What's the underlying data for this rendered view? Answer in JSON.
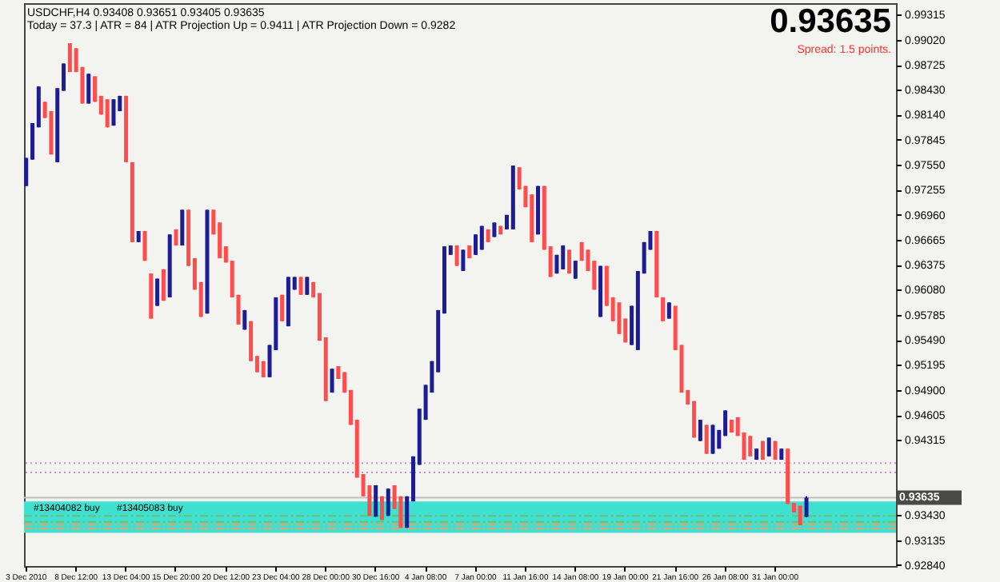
{
  "chart_data": {
    "type": "candlestick",
    "title": "USDCHF,H4  0.93408 0.93651 0.93405 0.93635",
    "subtitle": "Today = 37.3  |  ATR = 84  |  ATR Projection Up = 0.9411  |  ATR Projection Down = 0.9282",
    "categories": [
      "3 Dec 2010",
      null,
      null,
      null,
      null,
      null,
      null,
      null,
      "8 Dec 12:00",
      null,
      null,
      null,
      null,
      null,
      null,
      null,
      "13 Dec 04:00",
      null,
      null,
      null,
      null,
      null,
      null,
      null,
      "15 Dec 20:00",
      null,
      null,
      null,
      null,
      null,
      null,
      null,
      "20 Dec 12:00",
      null,
      null,
      null,
      null,
      null,
      null,
      null,
      "23 Dec 04:00",
      null,
      null,
      null,
      null,
      null,
      null,
      null,
      "28 Dec 00:00",
      null,
      null,
      null,
      null,
      null,
      null,
      null,
      "30 Dec 16:00",
      null,
      null,
      null,
      null,
      null,
      null,
      null,
      "4 Jan 08:00",
      null,
      null,
      null,
      null,
      null,
      null,
      null,
      "7 Jan 00:00",
      null,
      null,
      null,
      null,
      null,
      null,
      null,
      "11 Jan 16:00",
      null,
      null,
      null,
      null,
      null,
      null,
      null,
      "14 Jan 08:00",
      null,
      null,
      null,
      null,
      null,
      null,
      null,
      "19 Jan 00:00",
      null,
      null,
      null,
      null,
      null,
      null,
      null,
      "21 Jan 16:00",
      null,
      null,
      null,
      null,
      null,
      null,
      null,
      "26 Jan 08:00",
      null,
      null,
      null,
      null,
      null,
      null,
      null,
      "31 Jan 00:00",
      null,
      null,
      null,
      null,
      null,
      null,
      null,
      null,
      null,
      null,
      null,
      null,
      null,
      null,
      null,
      null,
      null,
      null,
      null
    ],
    "ohlc": [
      [
        0.973,
        0.9763,
        0.973,
        0.9763
      ],
      [
        0.9761,
        0.9804,
        0.9761,
        0.9804
      ],
      [
        0.9799,
        0.9847,
        0.9799,
        0.9847
      ],
      [
        0.9829,
        0.9829,
        0.981,
        0.981
      ],
      [
        0.9818,
        0.9818,
        0.9767,
        0.9767
      ],
      [
        0.9758,
        0.9845,
        0.9758,
        0.9845
      ],
      [
        0.9842,
        0.9874,
        0.9842,
        0.9874
      ],
      [
        0.9898,
        0.9898,
        0.9864,
        0.9864
      ],
      [
        0.9892,
        0.9892,
        0.9864,
        0.9864
      ],
      [
        0.987,
        0.987,
        0.9827,
        0.9827
      ],
      [
        0.9827,
        0.9862,
        0.9827,
        0.9862
      ],
      [
        0.9859,
        0.9859,
        0.9829,
        0.9829
      ],
      [
        0.9836,
        0.9836,
        0.9814,
        0.9814
      ],
      [
        0.9832,
        0.9832,
        0.9799,
        0.9799
      ],
      [
        0.9801,
        0.9832,
        0.9801,
        0.9832
      ],
      [
        0.9818,
        0.9836,
        0.9818,
        0.9836
      ],
      [
        0.9836,
        0.9836,
        0.9758,
        0.9758
      ],
      [
        0.9758,
        0.9758,
        0.9664,
        0.9664
      ],
      [
        0.9664,
        0.9677,
        0.9664,
        0.9677
      ],
      [
        0.9677,
        0.9677,
        0.9642,
        0.9642
      ],
      [
        0.9627,
        0.9627,
        0.9574,
        0.9574
      ],
      [
        0.9589,
        0.9621,
        0.9589,
        0.9621
      ],
      [
        0.9632,
        0.9632,
        0.9595,
        0.9595
      ],
      [
        0.9599,
        0.9673,
        0.9599,
        0.9673
      ],
      [
        0.9679,
        0.9679,
        0.966,
        0.966
      ],
      [
        0.966,
        0.9702,
        0.966,
        0.9702
      ],
      [
        0.9702,
        0.9702,
        0.9636,
        0.9636
      ],
      [
        0.9645,
        0.9645,
        0.9608,
        0.9608
      ],
      [
        0.9617,
        0.9617,
        0.9576,
        0.9576
      ],
      [
        0.958,
        0.9702,
        0.958,
        0.9702
      ],
      [
        0.9702,
        0.9702,
        0.9673,
        0.9673
      ],
      [
        0.9687,
        0.9687,
        0.9645,
        0.9645
      ],
      [
        0.9659,
        0.9659,
        0.964,
        0.964
      ],
      [
        0.9642,
        0.9642,
        0.9599,
        0.9599
      ],
      [
        0.9602,
        0.9602,
        0.9567,
        0.9567
      ],
      [
        0.9561,
        0.9584,
        0.9561,
        0.9584
      ],
      [
        0.9571,
        0.9571,
        0.9524,
        0.9524
      ],
      [
        0.953,
        0.953,
        0.9511,
        0.9511
      ],
      [
        0.9524,
        0.9524,
        0.9505,
        0.9505
      ],
      [
        0.9505,
        0.9543,
        0.9505,
        0.9543
      ],
      [
        0.9537,
        0.9599,
        0.9537,
        0.9599
      ],
      [
        0.9602,
        0.9602,
        0.9571,
        0.9571
      ],
      [
        0.9565,
        0.9623,
        0.9565,
        0.9623
      ],
      [
        0.9608,
        0.9623,
        0.9608,
        0.9623
      ],
      [
        0.9623,
        0.9623,
        0.9602,
        0.9602
      ],
      [
        0.9602,
        0.9623,
        0.9602,
        0.9623
      ],
      [
        0.9617,
        0.9617,
        0.9599,
        0.9599
      ],
      [
        0.9604,
        0.9604,
        0.9548,
        0.9548
      ],
      [
        0.9552,
        0.9552,
        0.9477,
        0.9477
      ],
      [
        0.9487,
        0.9515,
        0.9487,
        0.9515
      ],
      [
        0.9518,
        0.9518,
        0.9503,
        0.9503
      ],
      [
        0.9511,
        0.9511,
        0.9487,
        0.9487
      ],
      [
        0.949,
        0.949,
        0.9449,
        0.9449
      ],
      [
        0.9455,
        0.9455,
        0.9387,
        0.9387
      ],
      [
        0.9391,
        0.9391,
        0.9365,
        0.9365
      ],
      [
        0.9378,
        0.9378,
        0.9342,
        0.9342
      ],
      [
        0.9341,
        0.9378,
        0.9341,
        0.9378
      ],
      [
        0.9365,
        0.9365,
        0.9337,
        0.9337
      ],
      [
        0.9342,
        0.9374,
        0.9342,
        0.9374
      ],
      [
        0.9378,
        0.9378,
        0.935,
        0.935
      ],
      [
        0.9365,
        0.9365,
        0.9328,
        0.9328
      ],
      [
        0.9328,
        0.9365,
        0.9328,
        0.9365
      ],
      [
        0.9359,
        0.9412,
        0.9359,
        0.9412
      ],
      [
        0.9402,
        0.9468,
        0.9402,
        0.9468
      ],
      [
        0.9455,
        0.9496,
        0.9455,
        0.9496
      ],
      [
        0.9487,
        0.9524,
        0.9487,
        0.9524
      ],
      [
        0.9511,
        0.9584,
        0.9511,
        0.9584
      ],
      [
        0.958,
        0.9659,
        0.958,
        0.9659
      ],
      [
        0.9649,
        0.966,
        0.9649,
        0.966
      ],
      [
        0.966,
        0.966,
        0.9636,
        0.9636
      ],
      [
        0.963,
        0.9655,
        0.963,
        0.9655
      ],
      [
        0.966,
        0.966,
        0.9645,
        0.9645
      ],
      [
        0.9649,
        0.9673,
        0.9649,
        0.9673
      ],
      [
        0.9655,
        0.9683,
        0.9655,
        0.9683
      ],
      [
        0.9679,
        0.9679,
        0.9664,
        0.9664
      ],
      [
        0.967,
        0.9687,
        0.967,
        0.9687
      ],
      [
        0.9683,
        0.9683,
        0.9673,
        0.9673
      ],
      [
        0.9679,
        0.9696,
        0.9679,
        0.9696
      ],
      [
        0.9679,
        0.9754,
        0.9679,
        0.9754
      ],
      [
        0.9752,
        0.9752,
        0.9726,
        0.9726
      ],
      [
        0.973,
        0.973,
        0.9705,
        0.9705
      ],
      [
        0.972,
        0.972,
        0.9664,
        0.9664
      ],
      [
        0.9673,
        0.973,
        0.9673,
        0.973
      ],
      [
        0.973,
        0.973,
        0.9655,
        0.9655
      ],
      [
        0.9659,
        0.9659,
        0.9623,
        0.9623
      ],
      [
        0.9627,
        0.9649,
        0.9627,
        0.9649
      ],
      [
        0.9632,
        0.966,
        0.9632,
        0.966
      ],
      [
        0.9655,
        0.9655,
        0.9627,
        0.9627
      ],
      [
        0.9621,
        0.9642,
        0.9621,
        0.9642
      ],
      [
        0.9664,
        0.9664,
        0.9642,
        0.9642
      ],
      [
        0.9655,
        0.9655,
        0.963,
        0.963
      ],
      [
        0.9642,
        0.9642,
        0.9608,
        0.9608
      ],
      [
        0.9576,
        0.9636,
        0.9576,
        0.9636
      ],
      [
        0.9636,
        0.9636,
        0.9589,
        0.9589
      ],
      [
        0.9599,
        0.9599,
        0.9571,
        0.9571
      ],
      [
        0.9593,
        0.9593,
        0.9556,
        0.9556
      ],
      [
        0.9574,
        0.9574,
        0.9546,
        0.9546
      ],
      [
        0.9543,
        0.9589,
        0.9543,
        0.9589
      ],
      [
        0.9537,
        0.963,
        0.9537,
        0.963
      ],
      [
        0.9627,
        0.9664,
        0.9627,
        0.9664
      ],
      [
        0.9655,
        0.9677,
        0.9655,
        0.9677
      ],
      [
        0.9677,
        0.9677,
        0.9599,
        0.9599
      ],
      [
        0.9599,
        0.9599,
        0.9571,
        0.9571
      ],
      [
        0.9574,
        0.9593,
        0.9574,
        0.9593
      ],
      [
        0.9589,
        0.9589,
        0.9537,
        0.9537
      ],
      [
        0.9543,
        0.9543,
        0.9487,
        0.9487
      ],
      [
        0.949,
        0.949,
        0.9473,
        0.9473
      ],
      [
        0.9477,
        0.9477,
        0.9434,
        0.9434
      ],
      [
        0.943,
        0.9455,
        0.943,
        0.9455
      ],
      [
        0.9449,
        0.9449,
        0.9415,
        0.9415
      ],
      [
        0.9415,
        0.9449,
        0.9415,
        0.9449
      ],
      [
        0.9421,
        0.9443,
        0.9421,
        0.9443
      ],
      [
        0.9436,
        0.9466,
        0.9436,
        0.9466
      ],
      [
        0.9455,
        0.9455,
        0.944,
        0.944
      ],
      [
        0.9458,
        0.9458,
        0.9436,
        0.9436
      ],
      [
        0.944,
        0.944,
        0.9408,
        0.9408
      ],
      [
        0.9436,
        0.9436,
        0.9412,
        0.9412
      ],
      [
        0.9408,
        0.9421,
        0.9408,
        0.9421
      ],
      [
        0.943,
        0.943,
        0.9408,
        0.9408
      ],
      [
        0.9412,
        0.9434,
        0.9412,
        0.9434
      ],
      [
        0.943,
        0.943,
        0.9408,
        0.9408
      ],
      [
        0.9408,
        0.9421,
        0.9408,
        0.9421
      ],
      [
        0.9421,
        0.9421,
        0.9356,
        0.9356
      ],
      [
        0.9357,
        0.9357,
        0.9346,
        0.9346
      ],
      [
        0.9354,
        0.9354,
        0.9331,
        0.9331
      ],
      [
        0.93408,
        0.93651,
        0.93405,
        0.93635
      ],
      null,
      null,
      null,
      null,
      null,
      null,
      null,
      null,
      null,
      null,
      null,
      null,
      null,
      null
    ],
    "colors": [
      "#1c1c94",
      "#1c1c94",
      "#1c1c94",
      "#ff4c4c",
      "#ff4c4c",
      "#1c1c94",
      "#1c1c94",
      "#ff4c4c",
      "#ff4c4c",
      "#ff4c4c",
      "#1c1c94",
      "#ff4c4c",
      "#ff4c4c",
      "#ff4c4c",
      "#1c1c94",
      "#1c1c94",
      "#ff4c4c",
      "#ff4c4c",
      "#1c1c94",
      "#ff4c4c",
      "#ff4c4c",
      "#1c1c94",
      "#ff4c4c",
      "#1c1c94",
      "#ff4c4c",
      "#1c1c94",
      "#ff4c4c",
      "#ff4c4c",
      "#ff4c4c",
      "#1c1c94",
      "#ff4c4c",
      "#ff4c4c",
      "#ff4c4c",
      "#ff4c4c",
      "#ff4c4c",
      "#1c1c94",
      "#ff4c4c",
      "#ff4c4c",
      "#ff4c4c",
      "#1c1c94",
      "#1c1c94",
      "#ff4c4c",
      "#1c1c94",
      "#1c1c94",
      "#ff4c4c",
      "#1c1c94",
      "#ff4c4c",
      "#ff4c4c",
      "#ff4c4c",
      "#1c1c94",
      "#ff4c4c",
      "#ff4c4c",
      "#ff4c4c",
      "#ff4c4c",
      "#ff4c4c",
      "#ff4c4c",
      "#1c1c94",
      "#ff4c4c",
      "#1c1c94",
      "#ff4c4c",
      "#ff4c4c",
      "#1c1c94",
      "#1c1c94",
      "#1c1c94",
      "#1c1c94",
      "#1c1c94",
      "#1c1c94",
      "#1c1c94",
      "#1c1c94",
      "#ff4c4c",
      "#1c1c94",
      "#ff4c4c",
      "#1c1c94",
      "#1c1c94",
      "#ff4c4c",
      "#1c1c94",
      "#ff4c4c",
      "#1c1c94",
      "#1c1c94",
      "#ff4c4c",
      "#ff4c4c",
      "#ff4c4c",
      "#1c1c94",
      "#ff4c4c",
      "#ff4c4c",
      "#1c1c94",
      "#1c1c94",
      "#ff4c4c",
      "#1c1c94",
      "#ff4c4c",
      "#ff4c4c",
      "#ff4c4c",
      "#1c1c94",
      "#ff4c4c",
      "#ff4c4c",
      "#ff4c4c",
      "#ff4c4c",
      "#1c1c94",
      "#1c1c94",
      "#1c1c94",
      "#1c1c94",
      "#ff4c4c",
      "#ff4c4c",
      "#1c1c94",
      "#ff4c4c",
      "#ff4c4c",
      "#ff4c4c",
      "#ff4c4c",
      "#1c1c94",
      "#ff4c4c",
      "#1c1c94",
      "#1c1c94",
      "#1c1c94",
      "#ff4c4c",
      "#ff4c4c",
      "#ff4c4c",
      "#ff4c4c",
      "#1c1c94",
      "#ff4c4c",
      "#1c1c94",
      "#ff4c4c",
      "#1c1c94",
      "#ff4c4c",
      "#ff4c4c",
      "#ff4c4c",
      "#1c1c94",
      null,
      null,
      null,
      null,
      null,
      null,
      null,
      null,
      null,
      null,
      null,
      null,
      null,
      null
    ],
    "ylim": [
      0.9283,
      0.9945
    ],
    "yticks": [
      0.99315,
      {
        "value": 0.9902,
        "label": "0.99020"
      },
      0.98725,
      {
        "value": 0.9843,
        "label": "0.98430"
      },
      {
        "value": 0.9814,
        "label": "0.98140"
      },
      0.97845,
      {
        "value": 0.9755,
        "label": "0.97550"
      },
      0.97255,
      {
        "value": 0.9696,
        "label": "0.96960"
      },
      0.96665,
      0.96375,
      {
        "value": 0.9608,
        "label": "0.96080"
      },
      0.95785,
      {
        "value": 0.9549,
        "label": "0.95490"
      },
      0.95195,
      {
        "value": 0.949,
        "label": "0.94900"
      },
      0.94605,
      0.94315,
      {
        "value": 0.9343,
        "label": "0.93430"
      },
      0.93135,
      {
        "value": 0.9284,
        "label": "0.92840"
      }
    ],
    "bands": [
      {
        "axis": "y",
        "from": 0.9322,
        "to": 0.9359,
        "color": "#40e0d0"
      }
    ],
    "ref_lines": [
      {
        "axis": "y",
        "value": 0.9404,
        "color": "#d08ad0",
        "line_style": "dotted"
      },
      {
        "axis": "y",
        "value": 0.9393,
        "color": "#d08ad0",
        "line_style": "dotted"
      },
      {
        "axis": "y",
        "value": 0.93635,
        "label": "0.93635",
        "color": "#c0c0c0",
        "line_style": "solid"
      },
      {
        "axis": "y",
        "value": 0.9342,
        "label": "#13404082 buy",
        "color": "#6cbf6c",
        "line_style": "dashed"
      },
      {
        "axis": "y",
        "value": 0.9335,
        "label": "#13405083 buy",
        "color": "#6cbf6c",
        "line_style": "dashed"
      },
      {
        "axis": "y",
        "value": 0.9332,
        "color": "#ff9966",
        "line_style": "dashed"
      },
      {
        "axis": "y",
        "value": 0.9327,
        "color": "#ff9966",
        "line_style": "dashed"
      }
    ],
    "annotations": [
      "0.93635",
      "Spread: 1.5 points."
    ]
  }
}
